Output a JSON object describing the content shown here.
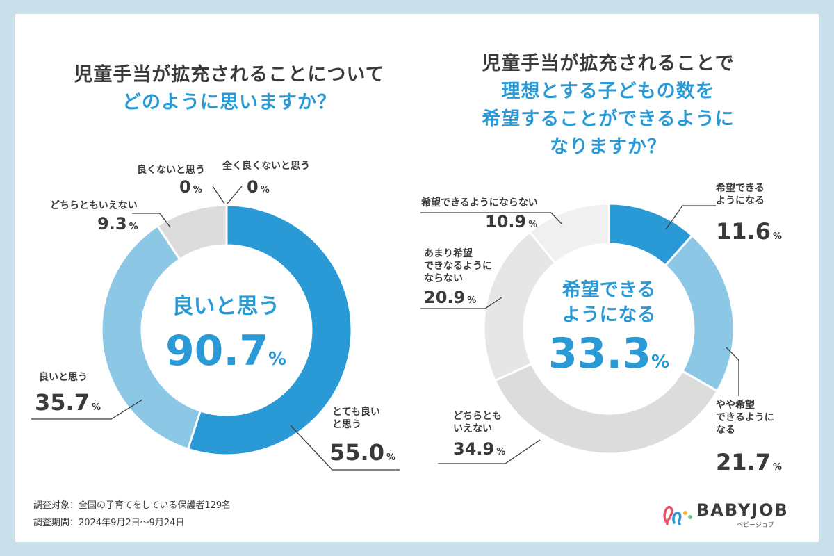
{
  "chart_data": [
    {
      "type": "pie",
      "title_line1": "児童手当が拡充されることについて",
      "title_line2": "どのように思いますか？",
      "center_label": "良いと思う",
      "center_value": "90.7",
      "center_unit": "%",
      "slices": [
        {
          "label": "とても良いと思う",
          "label_l1": "とても良い",
          "label_l2": "と思う",
          "value": 55.0,
          "value_text": "55.0",
          "color": "#2a9ad6"
        },
        {
          "label": "良いと思う",
          "value": 35.7,
          "value_text": "35.7",
          "color": "#8cc7e6"
        },
        {
          "label": "どちらともいえない",
          "value": 9.3,
          "value_text": "9.3",
          "color": "#dcdcdc"
        },
        {
          "label": "良くないと思う",
          "value": 0,
          "value_text": "0",
          "color": "#bfbfbf"
        },
        {
          "label": "全く良くないと思う",
          "value": 0,
          "value_text": "0",
          "color": "#a0a0a0"
        }
      ]
    },
    {
      "type": "pie",
      "title_line1": "児童手当が拡充されることで",
      "title_line2": "理想とする子どもの数を",
      "title_line3": "希望することができるように",
      "title_line4": "なりますか？",
      "center_label_l1": "希望できる",
      "center_label_l2": "ようになる",
      "center_value": "33.3",
      "center_unit": "%",
      "slices": [
        {
          "label": "希望できるようになる",
          "label_l1": "希望できる",
          "label_l2": "ようになる",
          "value": 11.6,
          "value_text": "11.6",
          "color": "#2a9ad6"
        },
        {
          "label": "やや希望できるようになる",
          "label_l1": "やや希望",
          "label_l2": "できるように",
          "label_l3": "なる",
          "value": 21.7,
          "value_text": "21.7",
          "color": "#8cc7e6"
        },
        {
          "label": "どちらともいえない",
          "label_l1": "どちらとも",
          "label_l2": "いえない",
          "value": 34.9,
          "value_text": "34.9",
          "color": "#dcdcdc"
        },
        {
          "label": "あまり希望できなるようにならない",
          "label_l1": "あまり希望",
          "label_l2": "できなるように",
          "label_l3": "ならない",
          "value": 20.9,
          "value_text": "20.9",
          "color": "#e6e6e6"
        },
        {
          "label": "希望できるようにならない",
          "value": 10.9,
          "value_text": "10.9",
          "color": "#f0f0f0"
        }
      ]
    }
  ],
  "footnote": {
    "target": "調査対象：全国の子育てをしている保護者129名",
    "period": "調査期間：2024年9月2日〜9月24日"
  },
  "logo": {
    "name": "BABYJOB",
    "kana": "ベビージョブ"
  },
  "pct_symbol": "%"
}
